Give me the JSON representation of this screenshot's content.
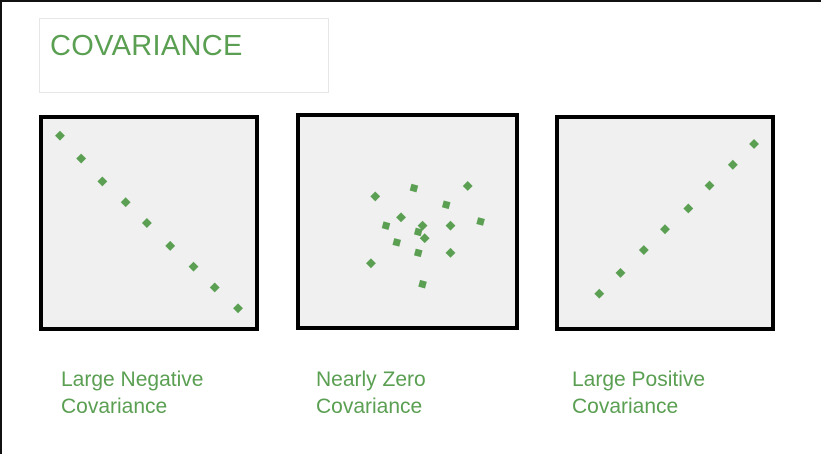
{
  "title": "COVARIANCE",
  "colors": {
    "accent": "#5a9f52",
    "panel_bg": "#f0f0f0",
    "panel_border": "#000000"
  },
  "panels": {
    "negative": {
      "label_line1": "Large Negative",
      "label_line2": "Covariance",
      "points": [
        [
          0.08,
          0.92
        ],
        [
          0.18,
          0.81
        ],
        [
          0.28,
          0.7
        ],
        [
          0.39,
          0.6
        ],
        [
          0.49,
          0.5
        ],
        [
          0.6,
          0.39
        ],
        [
          0.71,
          0.29
        ],
        [
          0.81,
          0.19
        ],
        [
          0.92,
          0.09
        ]
      ]
    },
    "zero": {
      "label_line1": "Nearly Zero",
      "label_line2": "Covariance",
      "points": [
        [
          0.35,
          0.62
        ],
        [
          0.53,
          0.66
        ],
        [
          0.78,
          0.67
        ],
        [
          0.68,
          0.58
        ],
        [
          0.47,
          0.52
        ],
        [
          0.4,
          0.48
        ],
        [
          0.57,
          0.48
        ],
        [
          0.84,
          0.5
        ],
        [
          0.7,
          0.48
        ],
        [
          0.55,
          0.45
        ],
        [
          0.58,
          0.42
        ],
        [
          0.45,
          0.4
        ],
        [
          0.7,
          0.35
        ],
        [
          0.55,
          0.35
        ],
        [
          0.33,
          0.3
        ],
        [
          0.57,
          0.2
        ]
      ]
    },
    "positive": {
      "label_line1": "Large Positive",
      "label_line2": "Covariance",
      "points": [
        [
          0.19,
          0.16
        ],
        [
          0.29,
          0.26
        ],
        [
          0.4,
          0.37
        ],
        [
          0.5,
          0.47
        ],
        [
          0.61,
          0.57
        ],
        [
          0.71,
          0.68
        ],
        [
          0.82,
          0.78
        ],
        [
          0.92,
          0.88
        ]
      ]
    }
  }
}
